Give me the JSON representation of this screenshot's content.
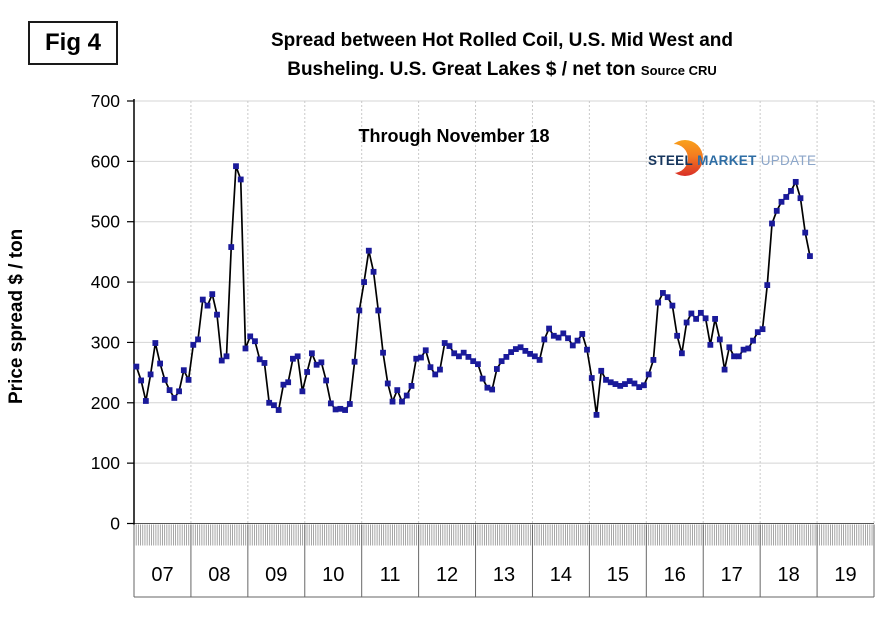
{
  "figure_label": "Fig 4",
  "title": {
    "line1": "Spread between Hot Rolled Coil, U.S. Mid West and",
    "line2": "Busheling. U.S. Great Lakes  $ / net ton",
    "source": "Source CRU"
  },
  "annotation": "Through November 18",
  "logo": {
    "word1": "STEEL",
    "word2": "MARKET",
    "word3": "UPDATE"
  },
  "y_axis": {
    "title": "Price spread $ / ton",
    "ticks": [
      0,
      100,
      200,
      300,
      400,
      500,
      600,
      700
    ]
  },
  "x_axis": {
    "year_labels": [
      "07",
      "08",
      "09",
      "10",
      "11",
      "12",
      "13",
      "14",
      "15",
      "16",
      "17",
      "18",
      "19"
    ]
  },
  "colors": {
    "line": "#000000",
    "marker": "#1a1a9a",
    "grid": "#d4d4d4",
    "year_divider": "#c9c9c9",
    "axis": "#000000",
    "minor_ticks": "#909090",
    "label_frame": "#666666"
  },
  "chart_data": {
    "type": "line",
    "title": "Spread between Hot Rolled Coil, U.S. Mid West and Busheling. U.S. Great Lakes $ / net ton",
    "source": "CRU",
    "annotation": "Through November 18",
    "frequency": "monthly",
    "start": "2007-01",
    "end": "2018-11",
    "ylabel": "Price spread $ / ton",
    "ylim": [
      0,
      700
    ],
    "y_tick_step": 100,
    "x_tick_labels": [
      "07",
      "08",
      "09",
      "10",
      "11",
      "12",
      "13",
      "14",
      "15",
      "16",
      "17",
      "18",
      "19"
    ],
    "grid": "light horizontal lines every 100; light dashed vertical lines at year boundaries; dense minor tick comb below x-axis",
    "legend_position": "none",
    "series": [
      {
        "name": "HRC U.S. Mid West minus Busheling U.S. Great Lakes spread ($/net ton)",
        "values": [
          260,
          237,
          203,
          247,
          299,
          265,
          238,
          221,
          208,
          219,
          254,
          238,
          296,
          305,
          371,
          361,
          380,
          346,
          270,
          277,
          458,
          592,
          570,
          290,
          310,
          302,
          272,
          266,
          200,
          196,
          188,
          230,
          234,
          273,
          277,
          219,
          251,
          282,
          263,
          267,
          237,
          199,
          189,
          190,
          188,
          198,
          268,
          353,
          400,
          452,
          417,
          353,
          283,
          232,
          202,
          221,
          202,
          212,
          228,
          273,
          275,
          287,
          259,
          247,
          255,
          299,
          294,
          282,
          277,
          283,
          276,
          269,
          264,
          240,
          225,
          222,
          256,
          269,
          276,
          284,
          289,
          292,
          286,
          281,
          277,
          271,
          305,
          323,
          311,
          308,
          315,
          307,
          295,
          303,
          314,
          288,
          241,
          180,
          253,
          238,
          234,
          231,
          228,
          231,
          236,
          232,
          226,
          229,
          247,
          271,
          366,
          382,
          375,
          361,
          311,
          282,
          333,
          348,
          339,
          349,
          340,
          296,
          339,
          305,
          255,
          292,
          277,
          277,
          288,
          290,
          303,
          317,
          322,
          395,
          497,
          518,
          533,
          541,
          551,
          566,
          539,
          482,
          443
        ]
      }
    ]
  }
}
